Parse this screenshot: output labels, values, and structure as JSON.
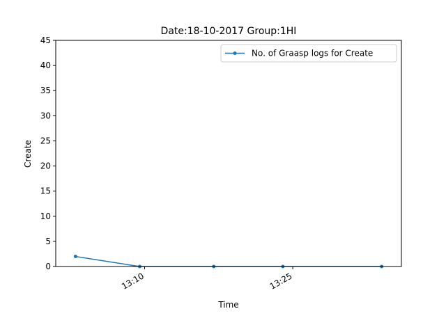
{
  "chart_data": {
    "type": "line",
    "title": "Date:18-10-2017  Group:1HI",
    "xlabel": "Time",
    "ylabel": "Create",
    "ylim": [
      0,
      45
    ],
    "yticks": [
      0,
      5,
      10,
      15,
      20,
      25,
      30,
      35,
      40,
      45
    ],
    "xlim": [
      "13:01",
      "13:36"
    ],
    "xticks": [
      "13:10",
      "13:25"
    ],
    "legend_position": "top-right",
    "grid": false,
    "series": [
      {
        "name": "No. of Graasp logs for Create",
        "color": "#1f77b4",
        "x": [
          "13:03",
          "13:09:30",
          "13:17",
          "13:24",
          "13:34"
        ],
        "y": [
          2,
          0,
          0,
          0,
          0
        ]
      }
    ]
  }
}
